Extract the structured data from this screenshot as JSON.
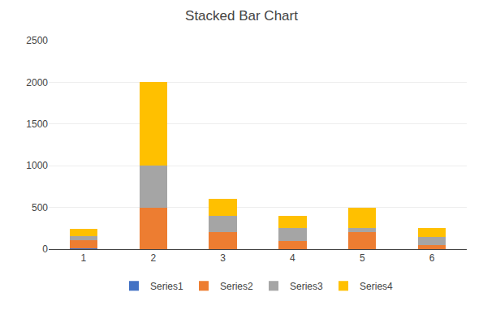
{
  "chart_data": {
    "type": "bar",
    "title": "Stacked Bar Chart",
    "categories": [
      "1",
      "2",
      "3",
      "4",
      "5",
      "6"
    ],
    "series": [
      {
        "name": "Series1",
        "color": "#4472C4",
        "values": [
          10,
          0,
          0,
          0,
          0,
          0
        ]
      },
      {
        "name": "Series2",
        "color": "#ED7D31",
        "values": [
          100,
          500,
          200,
          100,
          200,
          50
        ]
      },
      {
        "name": "Series3",
        "color": "#A5A5A5",
        "values": [
          50,
          500,
          200,
          150,
          50,
          100
        ]
      },
      {
        "name": "Series4",
        "color": "#FFC000",
        "values": [
          80,
          1000,
          200,
          150,
          250,
          100
        ]
      }
    ],
    "stacked": true,
    "ylim": [
      0,
      2500
    ],
    "yticks": [
      0,
      500,
      1000,
      1500,
      2000,
      2500
    ],
    "grid": true,
    "legend": "bottom"
  }
}
